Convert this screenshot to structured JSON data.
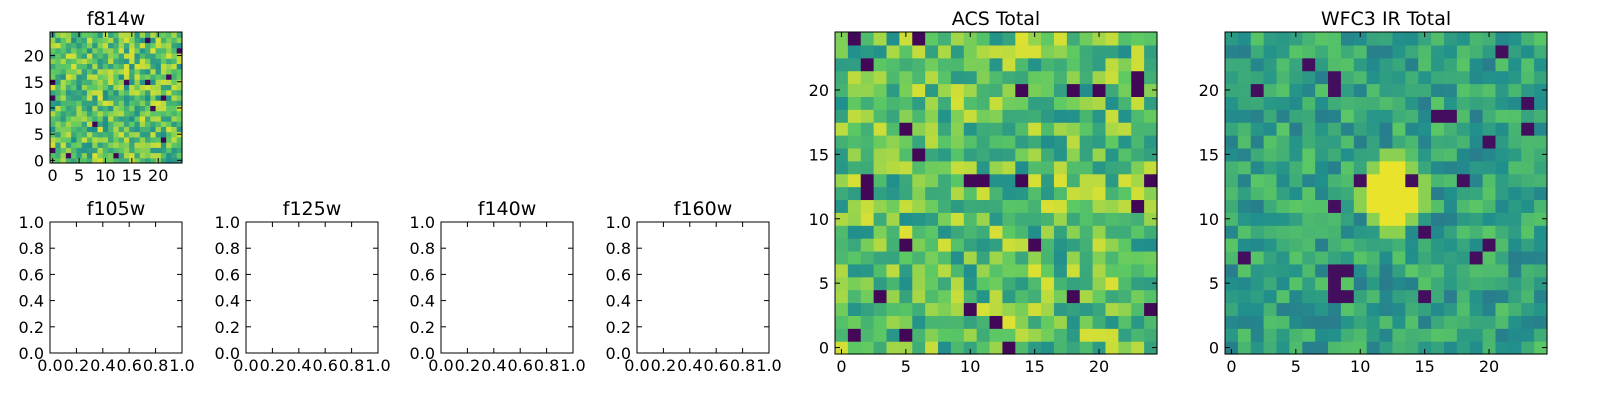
{
  "colors": {
    "frame": "#000000",
    "background": "#ffffff",
    "colormap": [
      "#440154",
      "#3b528b",
      "#21908c",
      "#5dc963",
      "#fde725"
    ]
  },
  "chart_data": [
    {
      "type": "heatmap",
      "title": "f814w",
      "colormap": "viridis",
      "shape": [
        25,
        25
      ],
      "xlim": [
        -0.5,
        24.5
      ],
      "ylim": [
        -0.5,
        24.5
      ],
      "xticks": [
        0,
        5,
        10,
        15,
        20
      ],
      "yticks": [
        0,
        5,
        10,
        15,
        20
      ],
      "xticklabels": [
        "0",
        "5",
        "10",
        "15",
        "20"
      ],
      "yticklabels": [
        "0",
        "5",
        "10",
        "15",
        "20"
      ],
      "values": "noise field, mostly green-yellow values with scattered dark pixels"
    },
    {
      "type": "empty",
      "title": "f105w",
      "xlim": [
        0.0,
        1.0
      ],
      "ylim": [
        0.0,
        1.0
      ],
      "xticklabels": [
        "0.0",
        "0.2",
        "0.4",
        "0.6",
        "0.8",
        "1.0"
      ],
      "yticklabels": [
        "0.0",
        "0.2",
        "0.4",
        "0.6",
        "0.8",
        "1.0"
      ]
    },
    {
      "type": "empty",
      "title": "f125w",
      "xlim": [
        0.0,
        1.0
      ],
      "ylim": [
        0.0,
        1.0
      ],
      "xticklabels": [
        "0.0",
        "0.2",
        "0.4",
        "0.6",
        "0.8",
        "1.0"
      ],
      "yticklabels": [
        "0.0",
        "0.2",
        "0.4",
        "0.6",
        "0.8",
        "1.0"
      ]
    },
    {
      "type": "empty",
      "title": "f140w",
      "xlim": [
        0.0,
        1.0
      ],
      "ylim": [
        0.0,
        1.0
      ],
      "xticklabels": [
        "0.0",
        "0.2",
        "0.4",
        "0.6",
        "0.8",
        "1.0"
      ],
      "yticklabels": [
        "0.0",
        "0.2",
        "0.4",
        "0.6",
        "0.8",
        "1.0"
      ]
    },
    {
      "type": "empty",
      "title": "f160w",
      "xlim": [
        0.0,
        1.0
      ],
      "ylim": [
        0.0,
        1.0
      ],
      "xticklabels": [
        "0.0",
        "0.2",
        "0.4",
        "0.6",
        "0.8",
        "1.0"
      ],
      "yticklabels": [
        "0.0",
        "0.2",
        "0.4",
        "0.6",
        "0.8",
        "1.0"
      ]
    },
    {
      "type": "heatmap",
      "title": "ACS Total",
      "colormap": "viridis",
      "shape": [
        25,
        25
      ],
      "xlim": [
        -0.5,
        24.5
      ],
      "ylim": [
        -0.5,
        24.5
      ],
      "xticks": [
        0,
        5,
        10,
        15,
        20
      ],
      "yticks": [
        0,
        5,
        10,
        15,
        20
      ],
      "xticklabels": [
        "0",
        "5",
        "10",
        "15",
        "20"
      ],
      "yticklabels": [
        "0",
        "5",
        "10",
        "15",
        "20"
      ],
      "values": "noise field, mostly green-yellow values with scattered dark pixels"
    },
    {
      "type": "heatmap",
      "title": "WFC3 IR Total",
      "colormap": "viridis",
      "shape": [
        25,
        25
      ],
      "xlim": [
        -0.5,
        24.5
      ],
      "ylim": [
        -0.5,
        24.5
      ],
      "xticks": [
        0,
        5,
        10,
        15,
        20
      ],
      "yticks": [
        0,
        5,
        10,
        15,
        20
      ],
      "xticklabels": [
        "0",
        "5",
        "10",
        "15",
        "20"
      ],
      "yticklabels": [
        "0",
        "5",
        "10",
        "15",
        "20"
      ],
      "values": "noise field, mostly green values with a bright yellow source near (12, 12)"
    }
  ]
}
